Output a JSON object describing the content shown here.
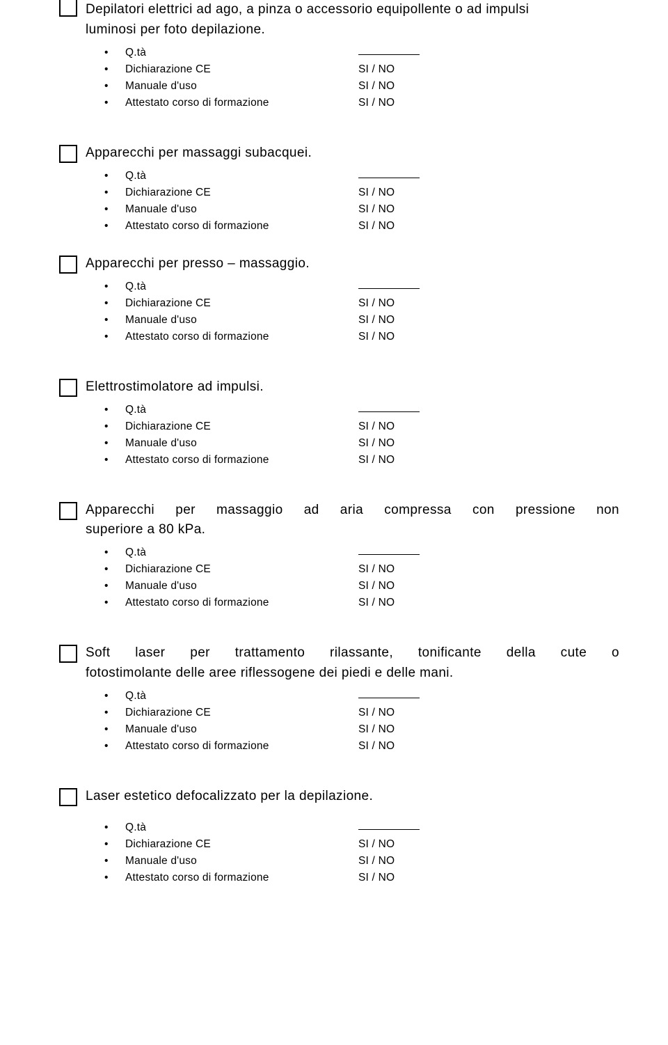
{
  "common": {
    "bullet": "•",
    "qta_label": "Q.tà",
    "dich_label": "Dichiarazione CE",
    "manuale_label": "Manuale d'uso",
    "attestato_label": "Attestato corso di formazione",
    "si_no_spaced": "SI  / NO",
    "si_no_tight": "SI /  NO"
  },
  "sections": {
    "depilatori": {
      "line1": "Depilatori elettrici ad ago, a pinza o accessorio equipollente o ad impulsi",
      "line2": "luminosi per foto depilazione."
    },
    "subacquei": {
      "line1": "Apparecchi per massaggi subacquei."
    },
    "presso": {
      "line1": "Apparecchi per presso – massaggio."
    },
    "elettro": {
      "line1": "Elettrostimolatore ad impulsi."
    },
    "aria": {
      "line1": "Apparecchi per massaggio ad aria compressa con pressione non",
      "line2": "superiore a 80 kPa."
    },
    "softlaser": {
      "line1": "Soft laser per trattamento rilassante, tonificante della cute o",
      "line2": "fotostimolante delle aree riflessogene dei piedi e delle mani."
    },
    "laserestetico": {
      "line1": "Laser estetico defocalizzato per la depilazione."
    }
  }
}
